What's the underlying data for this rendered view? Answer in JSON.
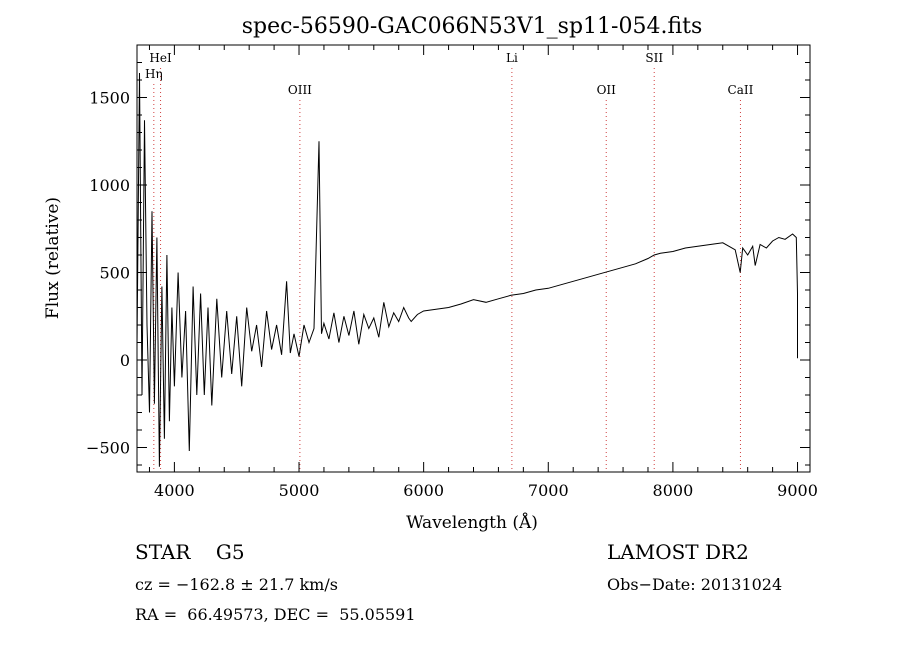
{
  "chart_data": {
    "type": "line",
    "title": "spec-56590-GAC066N53V1_sp11-054.fits",
    "xlabel": "Wavelength (Å)",
    "ylabel": "Flux (relative)",
    "xlim": [
      3700,
      9100
    ],
    "ylim": [
      -640,
      1800
    ],
    "x_ticks": [
      4000,
      5000,
      6000,
      7000,
      8000,
      9000
    ],
    "y_ticks": [
      -500,
      0,
      500,
      1000,
      1500
    ],
    "grid": false,
    "legend": "none",
    "series": [
      {
        "color": "#000000",
        "x": [
          3700,
          3720,
          3740,
          3760,
          3780,
          3800,
          3820,
          3840,
          3860,
          3880,
          3900,
          3920,
          3940,
          3960,
          3980,
          4000,
          4030,
          4060,
          4090,
          4120,
          4150,
          4180,
          4210,
          4240,
          4270,
          4300,
          4340,
          4380,
          4420,
          4460,
          4500,
          4540,
          4580,
          4620,
          4660,
          4700,
          4740,
          4780,
          4820,
          4860,
          4900,
          4930,
          4960,
          5000,
          5040,
          5080,
          5120,
          5160,
          5180,
          5200,
          5240,
          5280,
          5320,
          5360,
          5400,
          5440,
          5480,
          5520,
          5560,
          5600,
          5640,
          5680,
          5720,
          5760,
          5800,
          5840,
          5880,
          5900,
          5950,
          6000,
          6100,
          6200,
          6300,
          6400,
          6500,
          6600,
          6700,
          6800,
          6900,
          7000,
          7100,
          7200,
          7300,
          7400,
          7500,
          7600,
          7700,
          7800,
          7850,
          7900,
          8000,
          8100,
          8200,
          8300,
          8400,
          8500,
          8540,
          8560,
          8600,
          8640,
          8660,
          8700,
          8750,
          8800,
          8850,
          8900,
          8960,
          8990,
          9000,
          9000
        ],
        "y": [
          80,
          1640,
          -200,
          1370,
          200,
          -300,
          850,
          -250,
          700,
          -610,
          420,
          -450,
          600,
          -350,
          300,
          -150,
          500,
          -100,
          280,
          -520,
          420,
          -200,
          380,
          -200,
          300,
          -260,
          350,
          -100,
          280,
          -80,
          250,
          -150,
          300,
          50,
          200,
          -40,
          280,
          60,
          200,
          30,
          450,
          40,
          150,
          20,
          200,
          100,
          180,
          1250,
          150,
          210,
          120,
          270,
          100,
          250,
          140,
          280,
          90,
          260,
          180,
          240,
          130,
          330,
          190,
          270,
          220,
          300,
          240,
          220,
          260,
          280,
          290,
          300,
          320,
          345,
          330,
          350,
          370,
          380,
          400,
          410,
          430,
          450,
          470,
          490,
          510,
          530,
          550,
          580,
          600,
          610,
          620,
          640,
          650,
          660,
          670,
          630,
          500,
          640,
          600,
          650,
          540,
          660,
          640,
          680,
          700,
          690,
          720,
          700,
          380,
          10
        ]
      }
    ],
    "annotations": [
      {
        "label": "Hη",
        "x": 3835
      },
      {
        "label": "HeI",
        "x": 3889
      },
      {
        "label": "OIII",
        "x": 5007
      },
      {
        "label": "Li",
        "x": 6708
      },
      {
        "label": "OII",
        "x": 7465
      },
      {
        "label": "SII",
        "x": 7850
      },
      {
        "label": "CaII",
        "x": 8542
      }
    ]
  },
  "info": {
    "object": "STAR    G5",
    "velocity": "cz = −162.8 ± 21.7 km/s",
    "coords": "RA =  66.49573, DEC =  55.05591",
    "survey": "LAMOST DR2",
    "obs_date": "Obs−Date: 20131024"
  }
}
